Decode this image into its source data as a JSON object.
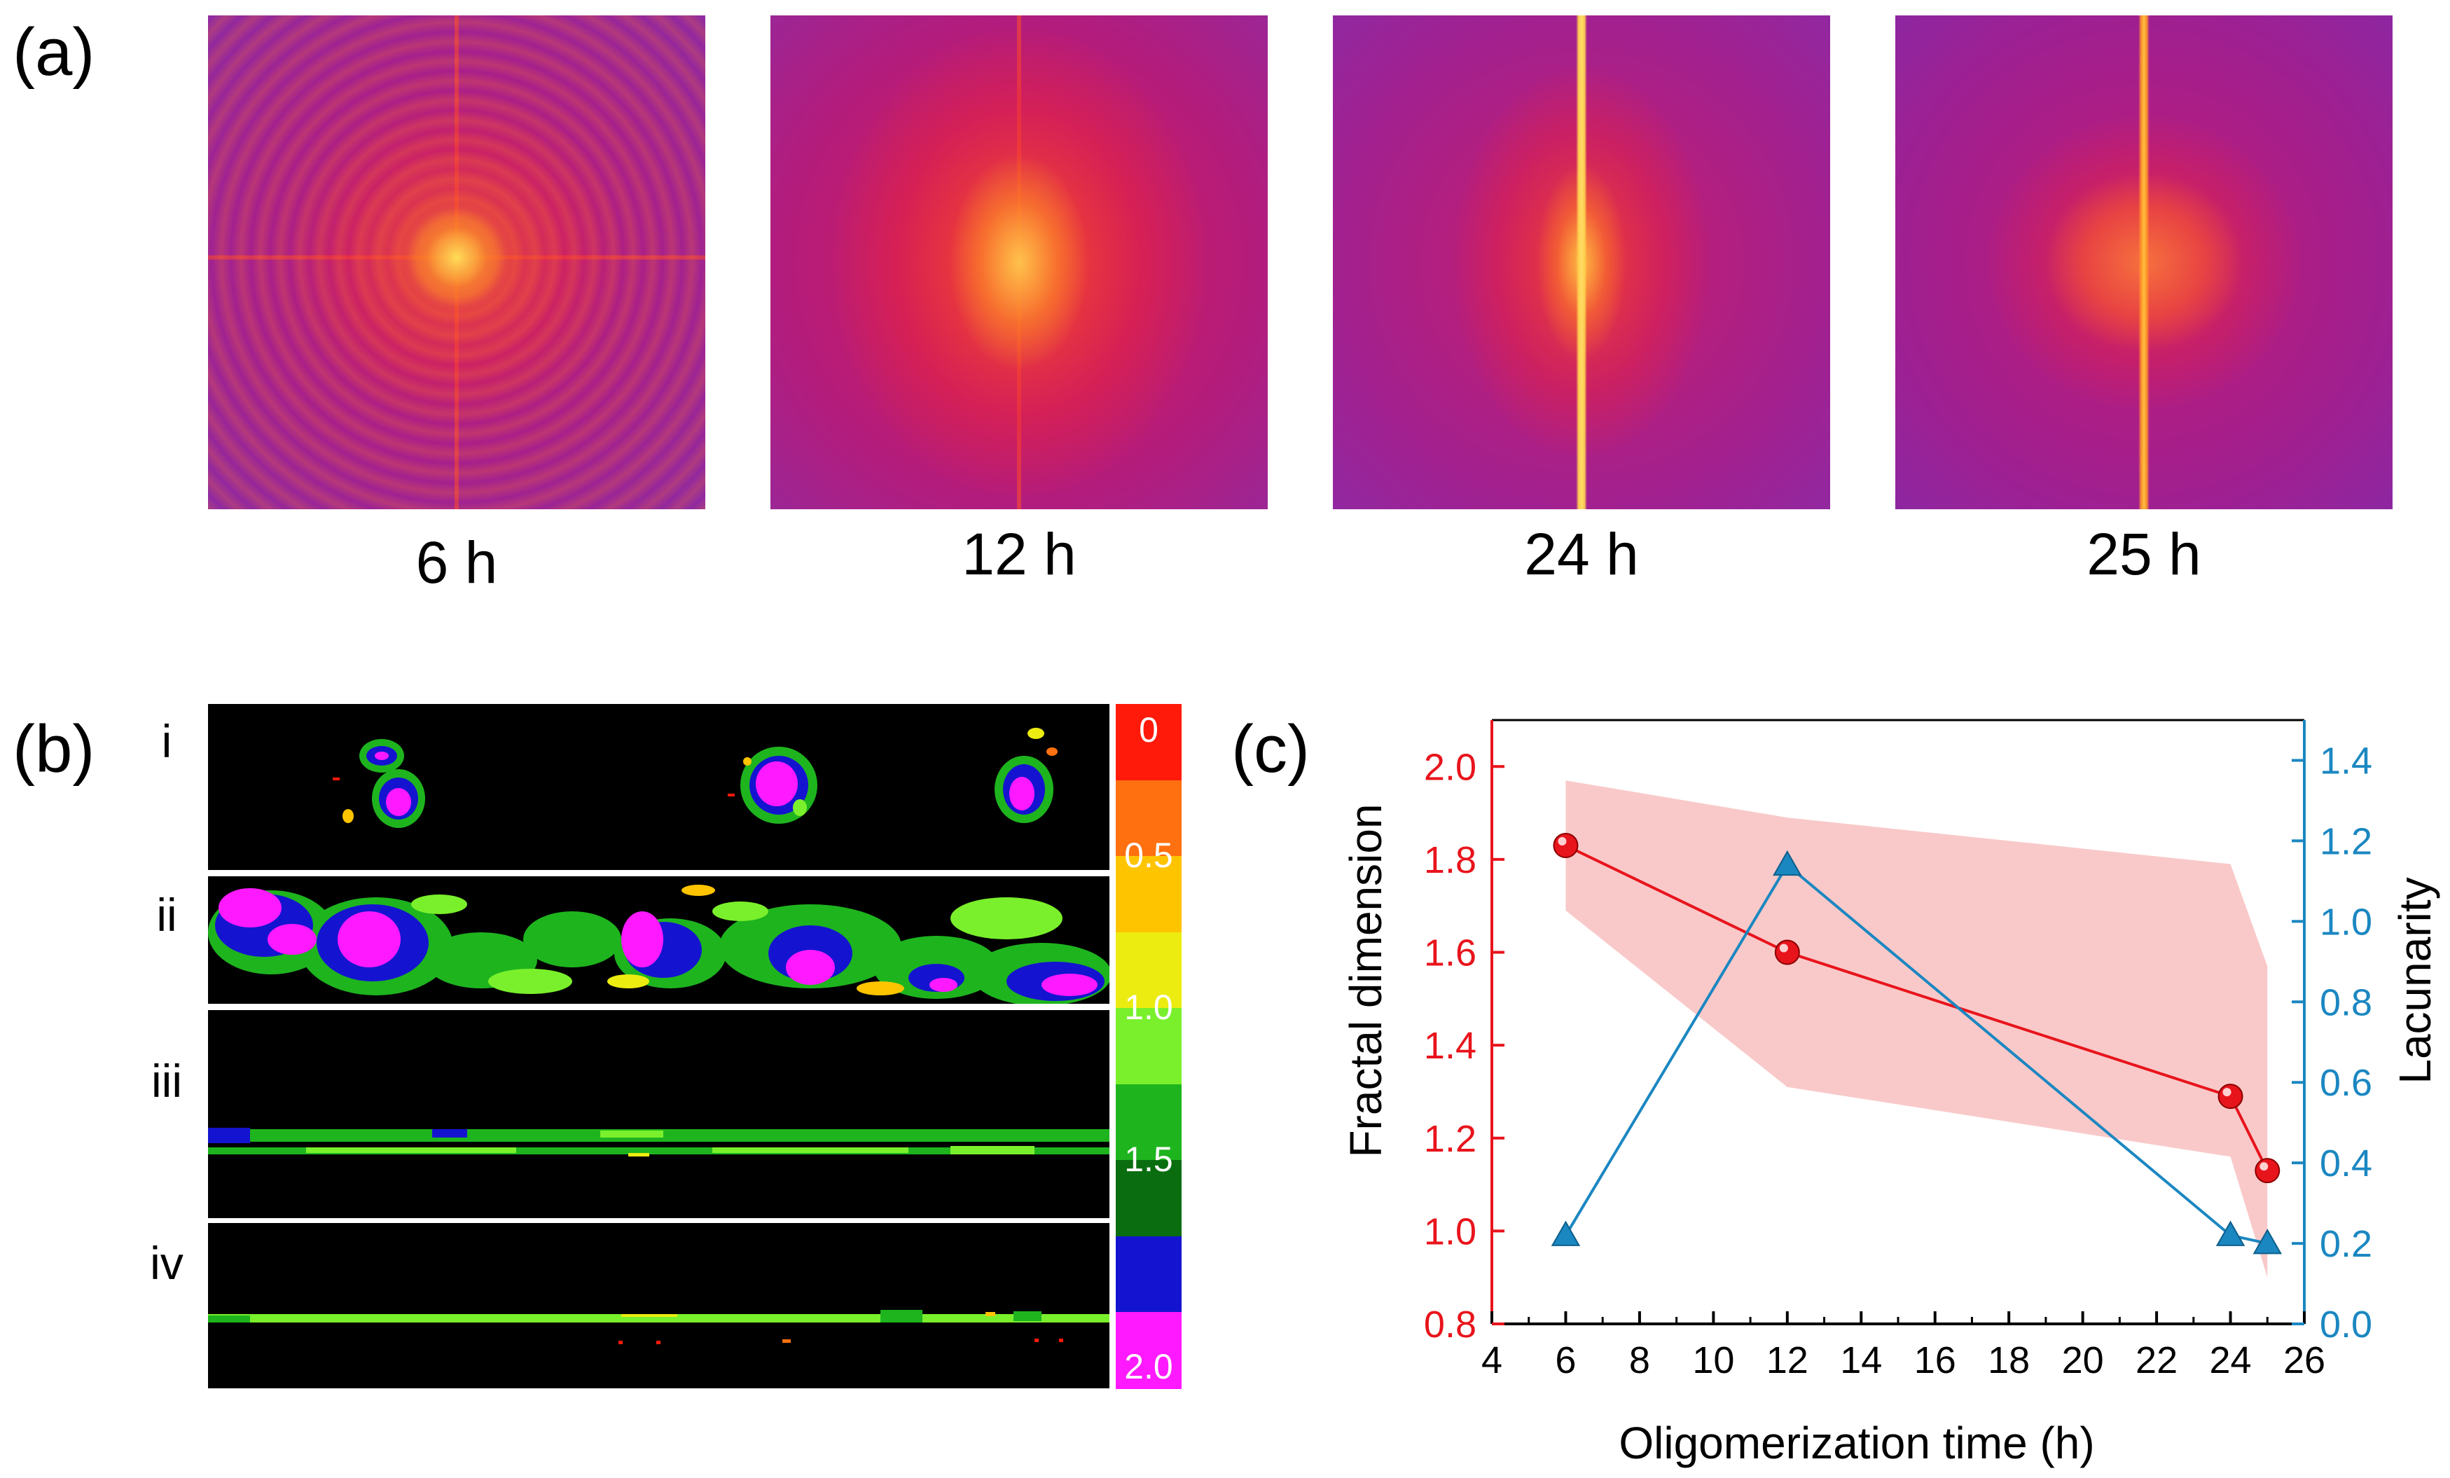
{
  "panels": {
    "a": {
      "label": "(a)",
      "images": [
        {
          "caption": "6 h"
        },
        {
          "caption": "12 h"
        },
        {
          "caption": "24 h"
        },
        {
          "caption": "25 h"
        }
      ]
    },
    "b": {
      "label": "(b)",
      "rows": [
        "i",
        "ii",
        "iii",
        "iv"
      ],
      "colorbar": {
        "colors": [
          "#ff1a0a",
          "#ff7010",
          "#ffc400",
          "#ecec10",
          "#7af02c",
          "#1eb41e",
          "#0a6e10",
          "#1414d0",
          "#ff19ff"
        ],
        "tick_labels": [
          "0",
          "0.5",
          "1.0",
          "1.5",
          "2.0"
        ]
      }
    },
    "c": {
      "label": "(c)"
    }
  },
  "chart_data": {
    "type": "line",
    "xlabel": "Oligomerization time (h)",
    "ylabel_left": "Fractal dimension",
    "ylabel_right": "Lacunarity",
    "xlim": [
      4,
      26
    ],
    "ylim_left": [
      0.8,
      2.1
    ],
    "ylim_right": [
      0.0,
      1.5
    ],
    "x_ticks": [
      4,
      6,
      8,
      10,
      12,
      14,
      16,
      18,
      20,
      22,
      24,
      26
    ],
    "y_left_ticks": [
      "0.8",
      "1.0",
      "1.2",
      "1.4",
      "1.6",
      "1.8",
      "2.0"
    ],
    "y_right_ticks": [
      "0.0",
      "0.2",
      "0.4",
      "0.6",
      "0.8",
      "1.0",
      "1.2",
      "1.4"
    ],
    "series": [
      {
        "axis": "left",
        "color": "#e8141c",
        "marker": "circle",
        "x": [
          6,
          12,
          24,
          25
        ],
        "values": [
          1.83,
          1.6,
          1.29,
          1.13
        ]
      },
      {
        "axis": "right",
        "color": "#1b87c1",
        "marker": "triangle",
        "x": [
          6,
          12,
          24,
          25
        ],
        "values": [
          0.22,
          1.14,
          0.22,
          0.2
        ]
      }
    ],
    "band": {
      "color": "#f9c9c9",
      "x": [
        6,
        12,
        24,
        25
      ],
      "upper": [
        1.97,
        1.89,
        1.79,
        1.57
      ],
      "lower": [
        1.69,
        1.31,
        1.16,
        0.9
      ]
    }
  }
}
